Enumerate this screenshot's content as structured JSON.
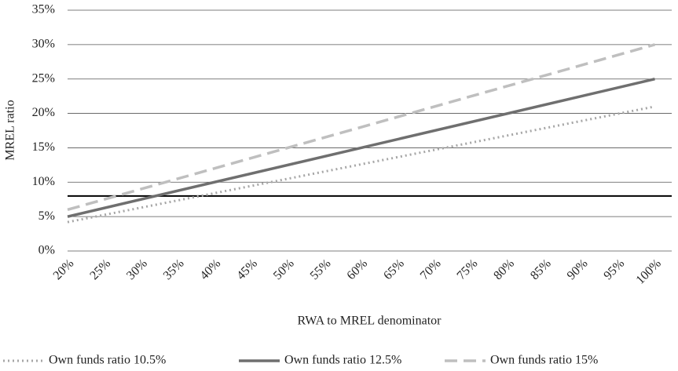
{
  "chart_data": {
    "type": "line",
    "x_label": "RWA to MREL denominator",
    "y_label": "MREL ratio",
    "x": [
      20,
      100
    ],
    "series": [
      {
        "name": "Own funds ratio 10.5%",
        "color": "#a6a6a6",
        "dash": "dotted",
        "values": [
          4.2,
          21
        ]
      },
      {
        "name": "Own funds ratio 12.5%",
        "color": "#6f6f6f",
        "dash": "solid",
        "values": [
          5,
          25
        ]
      },
      {
        "name": "Own funds ratio 15%",
        "color": "#bfbfbf",
        "dash": "dashed",
        "values": [
          6,
          30
        ]
      }
    ],
    "reference_line": {
      "value": 8,
      "color": "#000000"
    },
    "xlim": [
      20,
      102.3
    ],
    "ylim": [
      0,
      35
    ],
    "xticks": [
      {
        "value": 20,
        "label": "20%"
      },
      {
        "value": 25,
        "label": "25%"
      },
      {
        "value": 30,
        "label": "30%"
      },
      {
        "value": 35,
        "label": "35%"
      },
      {
        "value": 40,
        "label": "40%"
      },
      {
        "value": 45,
        "label": "45%"
      },
      {
        "value": 50,
        "label": "50%"
      },
      {
        "value": 55,
        "label": "55%"
      },
      {
        "value": 60,
        "label": "60%"
      },
      {
        "value": 65,
        "label": "65%"
      },
      {
        "value": 70,
        "label": "70%"
      },
      {
        "value": 75,
        "label": "75%"
      },
      {
        "value": 80,
        "label": "80%"
      },
      {
        "value": 85,
        "label": "85%"
      },
      {
        "value": 90,
        "label": "90%"
      },
      {
        "value": 95,
        "label": "95%"
      },
      {
        "value": 100,
        "label": "100%"
      }
    ],
    "yticks": [
      {
        "value": 0,
        "label": "0%"
      },
      {
        "value": 5,
        "label": "5%"
      },
      {
        "value": 10,
        "label": "10%"
      },
      {
        "value": 15,
        "label": "15%"
      },
      {
        "value": 20,
        "label": "20%"
      },
      {
        "value": 25,
        "label": "25%"
      },
      {
        "value": 30,
        "label": "30%"
      },
      {
        "value": 35,
        "label": "35%"
      }
    ],
    "grid": true,
    "legend": "bottom"
  }
}
